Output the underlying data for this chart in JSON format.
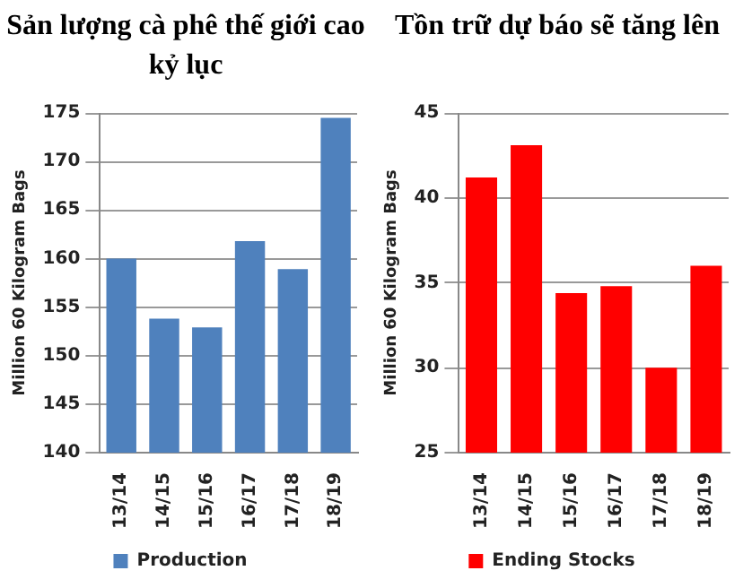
{
  "chart_data": [
    {
      "type": "bar",
      "title": "Sản lượng cà phê thế giới cao kỷ lục",
      "ylabel": "Million 60 Kilogram Bags",
      "categories": [
        "13/14",
        "14/15",
        "15/16",
        "16/17",
        "17/18",
        "18/19"
      ],
      "series": [
        {
          "name": "Production",
          "color": "#4f81bd",
          "values": [
            160,
            153.8,
            152.9,
            161.8,
            158.9,
            174.5
          ]
        }
      ],
      "ylim": [
        140,
        175
      ],
      "yticks": [
        140,
        145,
        150,
        155,
        160,
        165,
        170,
        175
      ],
      "grid": "y",
      "legend": "bottom"
    },
    {
      "type": "bar",
      "title": "Tồn trữ dự báo sẽ tăng lên",
      "ylabel": "Million 60 Kilogram Bags",
      "categories": [
        "13/14",
        "14/15",
        "15/16",
        "16/17",
        "17/18",
        "18/19"
      ],
      "series": [
        {
          "name": "Ending Stocks",
          "color": "#ff0000",
          "values": [
            41.2,
            43.1,
            34.4,
            34.8,
            30,
            36
          ]
        }
      ],
      "ylim": [
        25,
        45
      ],
      "yticks": [
        25,
        30,
        35,
        40,
        45
      ],
      "grid": "y",
      "legend": "bottom"
    }
  ]
}
